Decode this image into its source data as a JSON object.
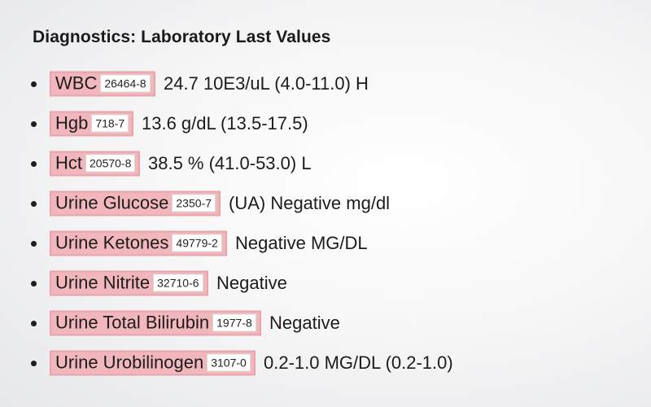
{
  "title": "Diagnostics: Laboratory Last Values",
  "results": [
    {
      "name": "WBC",
      "code": "26464-8",
      "value": "24.7 10E3/uL (4.0-11.0) H"
    },
    {
      "name": "Hgb",
      "code": "718-7",
      "value": "13.6 g/dL (13.5-17.5)"
    },
    {
      "name": "Hct",
      "code": "20570-8",
      "value": "38.5 % (41.0-53.0) L"
    },
    {
      "name": "Urine Glucose",
      "code": "2350-7",
      "value": "(UA) Negative mg/dl"
    },
    {
      "name": "Urine Ketones",
      "code": "49779-2",
      "value": "Negative MG/DL"
    },
    {
      "name": "Urine Nitrite",
      "code": "32710-6",
      "value": "Negative"
    },
    {
      "name": "Urine Total Bilirubin",
      "code": "1977-8",
      "value": "Negative"
    },
    {
      "name": "Urine Urobilinogen",
      "code": "3107-0",
      "value": "0.2-1.0 MG/DL (0.2-1.0)"
    }
  ],
  "colors": {
    "highlight": "#f1b7bc",
    "highlight_border": "#e8a4aa",
    "code_background": "#ffffff",
    "text": "#1c1c1c"
  }
}
